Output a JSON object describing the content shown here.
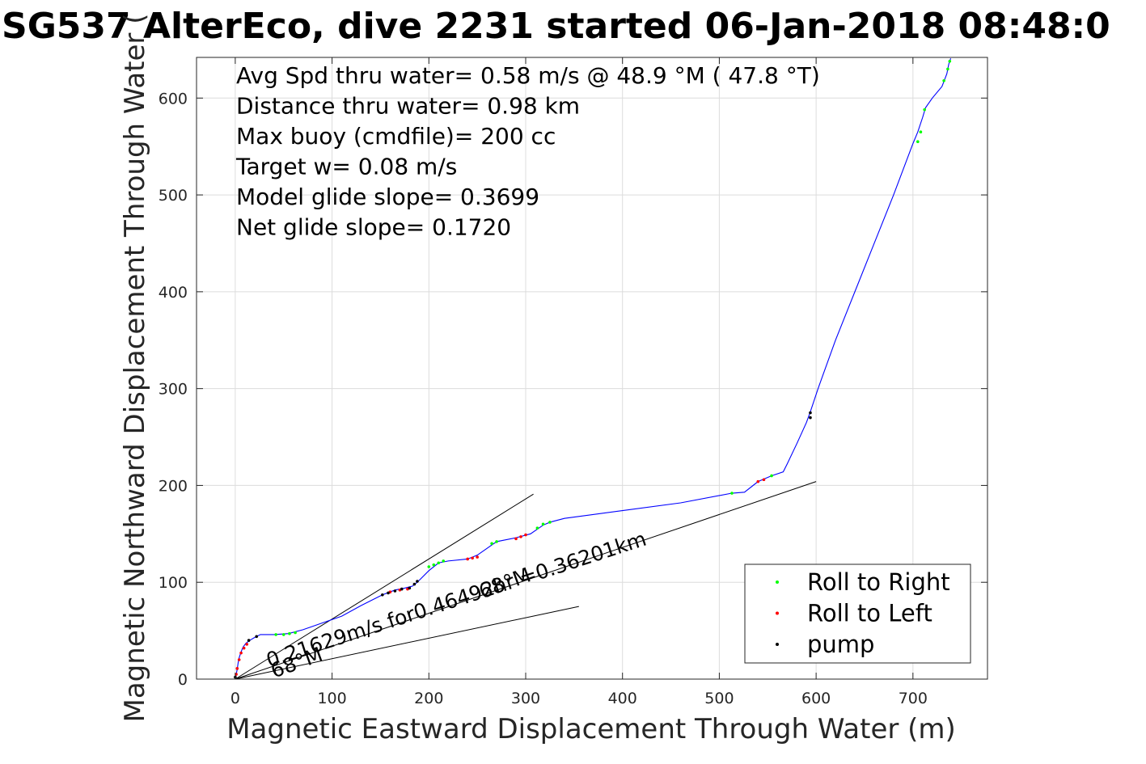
{
  "chart_data": {
    "type": "line",
    "title": "SG537 AlterEco, dive 2231 started 06-Jan-2018 08:48:0",
    "xlabel": "Magnetic Eastward Displacement Through Water (m)",
    "ylabel": "Magnetic Northward Displacement Through Water (",
    "xlim": [
      -40,
      777
    ],
    "ylim": [
      0,
      642
    ],
    "xticks": [
      0,
      100,
      200,
      300,
      400,
      500,
      600,
      700
    ],
    "yticks": [
      0,
      100,
      200,
      300,
      400,
      500,
      600
    ],
    "grid": true,
    "legend_position": "bottom-right",
    "legend": [
      {
        "label": "Roll to Right",
        "color": "#00ff00"
      },
      {
        "label": "Roll to Left",
        "color": "#ff0000"
      },
      {
        "label": "pump",
        "color": "#000000"
      }
    ],
    "annotations": [
      "Avg Spd thru water=  0.58 m/s @  48.9 °M ( 47.8 °T)",
      "Distance thru water=  0.98 km",
      "Max buoy (cmdfile)= 200 cc",
      "Target w= 0.08 m/s",
      "Model glide slope= 0.3699",
      "Net glide slope= 0.1720"
    ],
    "rotated_labels": [
      {
        "text": "0.21629m/s for0.46492hr =0.36201km",
        "x": 35,
        "y": 12,
        "angle": 18
      },
      {
        "text": "68°M",
        "x": 40,
        "y": 1,
        "angle": 20
      },
      {
        "text": "68°M",
        "x": 255,
        "y": 83,
        "angle": 20
      }
    ],
    "reference_lines": [
      {
        "x": [
          0,
          308
        ],
        "y": [
          0,
          191
        ]
      },
      {
        "x": [
          0,
          355
        ],
        "y": [
          0,
          75
        ]
      },
      {
        "x": [
          0,
          600
        ],
        "y": [
          0,
          204
        ]
      }
    ],
    "series": [
      {
        "x": [
          0,
          1,
          2,
          3,
          4,
          6,
          8,
          11,
          15,
          20,
          26,
          30,
          40,
          55,
          70,
          90,
          110,
          130,
          152,
          165,
          175,
          183,
          188,
          200,
          210,
          220,
          240,
          250,
          260,
          270,
          290,
          305,
          318,
          325,
          340,
          400,
          460,
          513,
          526,
          540,
          554,
          566,
          570,
          580,
          590,
          594,
          602,
          620,
          640,
          660,
          680,
          700,
          705,
          710,
          713,
          720,
          730,
          735,
          737,
          739
        ],
        "y": [
          0,
          5,
          10,
          17,
          22,
          28,
          33,
          37,
          40,
          43,
          46,
          46,
          46,
          47,
          51,
          58,
          65,
          76,
          87,
          92,
          94,
          96,
          100,
          112,
          120,
          122,
          124,
          128,
          135,
          142,
          146,
          150,
          159,
          162,
          166,
          174,
          182,
          192,
          193,
          204,
          210,
          214,
          222,
          243,
          265,
          276,
          300,
          350,
          400,
          450,
          500,
          553,
          565,
          580,
          590,
          600,
          612,
          625,
          635,
          641
        ],
        "color": "#0000ff"
      }
    ],
    "markers": {
      "roll_right": {
        "color": "#00ff00",
        "x": [
          42,
          50,
          56,
          62,
          200,
          205,
          210,
          215,
          265,
          270,
          312,
          318,
          325,
          513,
          554,
          705,
          708,
          712,
          732,
          736,
          738
        ],
        "y": [
          46,
          46,
          47,
          48,
          116,
          118,
          120,
          122,
          140,
          142,
          156,
          160,
          162,
          192,
          210,
          555,
          565,
          588,
          618,
          630,
          638
        ]
      },
      "roll_left": {
        "color": "#ff0000",
        "x": [
          1,
          2,
          4,
          6,
          9,
          12,
          160,
          170,
          178,
          240,
          245,
          250,
          290,
          295,
          300,
          540,
          546
        ],
        "y": [
          5,
          11,
          20,
          27,
          32,
          36,
          90,
          92,
          93,
          124,
          125,
          126,
          145,
          147,
          149,
          204,
          206
        ]
      },
      "pump": {
        "color": "#000000",
        "x": [
          0,
          14,
          22,
          152,
          158,
          165,
          172,
          180,
          185,
          188,
          594,
          594
        ],
        "y": [
          2,
          40,
          44,
          87,
          89,
          91,
          93,
          94,
          98,
          101,
          270,
          275
        ]
      }
    }
  }
}
